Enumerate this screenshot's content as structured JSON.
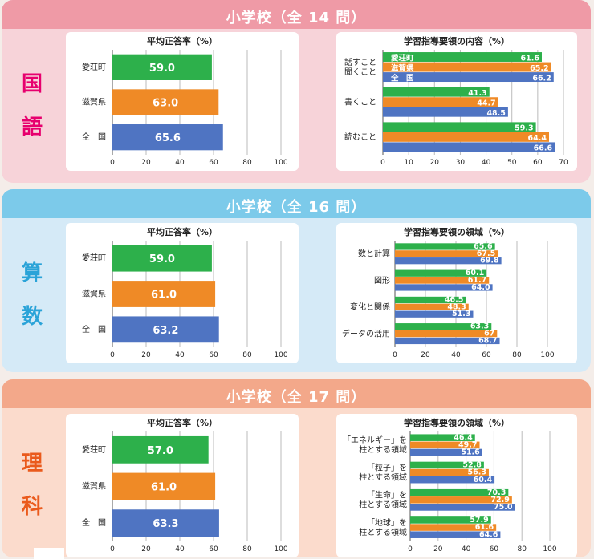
{
  "colors": {
    "aisho": "#2db04b",
    "shiga": "#ef8a26",
    "zenkoku": "#4f74c2",
    "pink": "#ef9aa6",
    "pinkBg": "#f7d3d9",
    "pinkText": "#e7006e",
    "blue": "#7ccaea",
    "blueBg": "#d5eaf7",
    "blueText": "#2aa3d8",
    "orange": "#f3a88a",
    "orangeBg": "#fbdbcc",
    "orangeText": "#ea5a1c"
  },
  "sections": [
    {
      "title": "小学校（全 14 問）",
      "subject": [
        "国",
        "語"
      ]
    },
    {
      "title": "小学校（全 16 問）",
      "subject": [
        "算",
        "数"
      ]
    },
    {
      "title": "小学校（全 17 問）",
      "subject": [
        "理",
        "科"
      ]
    }
  ],
  "chart_data": [
    {
      "type": "bar",
      "orientation": "horizontal",
      "title": "平均正答率（%）",
      "categories": [
        "愛荘町",
        "滋賀県",
        "全　国"
      ],
      "values": [
        59.0,
        63.0,
        65.6
      ],
      "value_labels": [
        "59.0",
        "63.0",
        "65.6"
      ],
      "xlim": [
        0,
        100
      ],
      "xticks": [
        0,
        20,
        40,
        60,
        80,
        100
      ]
    },
    {
      "type": "bar",
      "orientation": "horizontal",
      "title": "学習指導要領の内容（%）",
      "categories": [
        "話すこと\n聞くこと",
        "書くこと",
        "読むこと"
      ],
      "series_labels": [
        "愛荘町",
        "滋賀県",
        "全　国"
      ],
      "series": [
        {
          "name": "愛荘町",
          "values": [
            61.6,
            41.3,
            59.3
          ],
          "labels": [
            "61.6",
            "41.3",
            "59.3"
          ]
        },
        {
          "name": "滋賀県",
          "values": [
            65.2,
            44.7,
            64.4
          ],
          "labels": [
            "65.2",
            "44.7",
            "64.4"
          ]
        },
        {
          "name": "全　国",
          "values": [
            66.2,
            48.5,
            66.6
          ],
          "labels": [
            "66.2",
            "48.5",
            "66.6"
          ]
        }
      ],
      "xlim": [
        0,
        70
      ],
      "xticks": [
        0,
        10,
        20,
        30,
        40,
        50,
        60,
        70
      ]
    },
    {
      "type": "bar",
      "orientation": "horizontal",
      "title": "平均正答率（%）",
      "categories": [
        "愛荘町",
        "滋賀県",
        "全　国"
      ],
      "values": [
        59.0,
        61.0,
        63.2
      ],
      "value_labels": [
        "59.0",
        "61.0",
        "63.2"
      ],
      "xlim": [
        0,
        100
      ],
      "xticks": [
        0,
        20,
        40,
        60,
        80,
        100
      ]
    },
    {
      "type": "bar",
      "orientation": "horizontal",
      "title": "学習指導要領の領域（%）",
      "categories": [
        "数と計算",
        "図形",
        "変化と関係",
        "データの活用"
      ],
      "series": [
        {
          "name": "愛荘町",
          "values": [
            65.6,
            60.1,
            46.5,
            63.3
          ],
          "labels": [
            "65.6",
            "60.1",
            "46.5",
            "63.3"
          ]
        },
        {
          "name": "滋賀県",
          "values": [
            67.5,
            61.7,
            48.3,
            67
          ],
          "labels": [
            "67.5",
            "61.7",
            "48.3",
            "67"
          ]
        },
        {
          "name": "全　国",
          "values": [
            69.8,
            64.0,
            51.3,
            68.7
          ],
          "labels": [
            "69.8",
            "64.0",
            "51.3",
            "68.7"
          ]
        }
      ],
      "xlim": [
        0,
        100
      ],
      "xticks": [
        0,
        20,
        40,
        60,
        80,
        100
      ]
    },
    {
      "type": "bar",
      "orientation": "horizontal",
      "title": "平均正答率（%）",
      "categories": [
        "愛荘町",
        "滋賀県",
        "全　国"
      ],
      "values": [
        57.0,
        61.0,
        63.3
      ],
      "value_labels": [
        "57.0",
        "61.0",
        "63.3"
      ],
      "xlim": [
        0,
        100
      ],
      "xticks": [
        0,
        20,
        40,
        60,
        80,
        100
      ]
    },
    {
      "type": "bar",
      "orientation": "horizontal",
      "title": "学習指導要領の領域（%）",
      "categories": [
        "「エネルギー」を\n柱とする領域",
        "「粒子」を\n柱とする領域",
        "「生命」を\n柱とする領域",
        "「地球」を\n柱とする領域"
      ],
      "series": [
        {
          "name": "愛荘町",
          "values": [
            46.4,
            52.8,
            70.3,
            57.9
          ],
          "labels": [
            "46.4",
            "52.8",
            "70.3",
            "57.9"
          ]
        },
        {
          "name": "滋賀県",
          "values": [
            49.7,
            56.3,
            72.9,
            61.6
          ],
          "labels": [
            "49.7",
            "56.3",
            "72.9",
            "61.6"
          ]
        },
        {
          "name": "全　国",
          "values": [
            51.6,
            60.4,
            75.0,
            64.6
          ],
          "labels": [
            "51.6",
            "60.4",
            "75.0",
            "64.6"
          ]
        }
      ],
      "xlim": [
        0,
        100
      ],
      "xticks": [
        0,
        20,
        40,
        60,
        80,
        100
      ]
    }
  ]
}
